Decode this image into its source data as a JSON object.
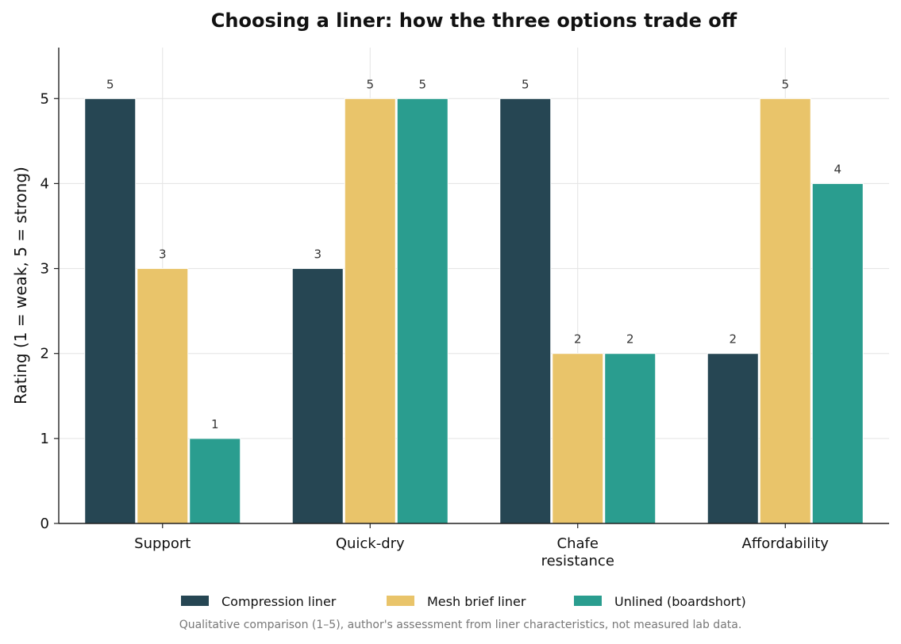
{
  "chart_data": {
    "type": "bar",
    "title": "Choosing a liner: how the three options trade off",
    "xlabel": "",
    "ylabel": "Rating (1 = weak, 5 = strong)",
    "ylim": [
      0,
      5.6
    ],
    "yticks": [
      0,
      1,
      2,
      3,
      4,
      5
    ],
    "categories": [
      [
        "Support"
      ],
      [
        "Quick-dry"
      ],
      [
        "Chafe",
        "resistance"
      ],
      [
        "Affordability"
      ]
    ],
    "series": [
      {
        "name": "Compression liner",
        "color": "#264653",
        "values": [
          5,
          3,
          5,
          2
        ]
      },
      {
        "name": "Mesh brief liner",
        "color": "#e9c46a",
        "values": [
          3,
          5,
          2,
          5
        ]
      },
      {
        "name": "Unlined (boardshort)",
        "color": "#2a9d8f",
        "values": [
          1,
          5,
          2,
          4
        ]
      }
    ],
    "grid": true,
    "legend_position": "bottom",
    "data_labels": true,
    "footnote": "Qualitative comparison (1–5), author's assessment from liner characteristics, not measured lab data."
  }
}
